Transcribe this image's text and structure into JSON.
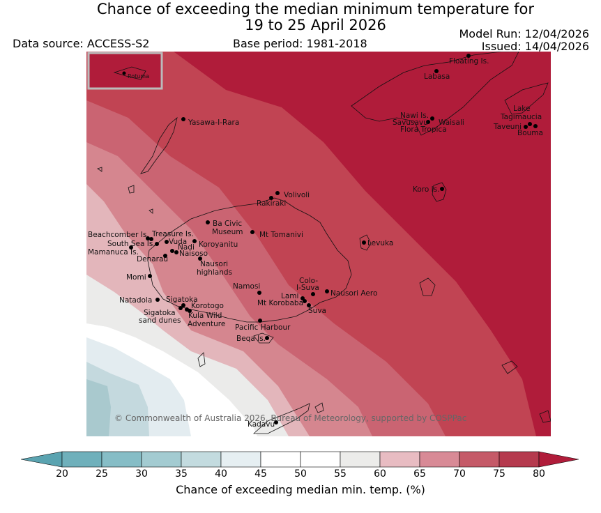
{
  "title": "Chance of exceeding the median minimum temperature for",
  "title_line2": "19 to 25 April 2026",
  "data_source": "Data source: ACCESS-S2",
  "base_period": "Base period: 1981-2018",
  "model_run": "Model Run: 12/04/2026",
  "issued": "Issued: 14/04/2026",
  "inset_label": "Rotuma",
  "copyright": "© Commonwealth of Australia 2026, Bureau of Meteorology, supported by COSPPac",
  "colorbar": {
    "label": "Chance of exceeding median min. temp. (%)",
    "ticks": [
      "20",
      "25",
      "30",
      "35",
      "40",
      "45",
      "50",
      "55",
      "60",
      "65",
      "70",
      "75",
      "80"
    ],
    "colors": [
      "#5aa3b0",
      "#6fb0bb",
      "#86bdc6",
      "#a3cbd1",
      "#c3dbdf",
      "#e6eff2",
      "#ffffff",
      "#ffffff",
      "#ececea",
      "#e8bcc2",
      "#d88a96",
      "#c55a68",
      "#b53a4e"
    ],
    "under_color": "#5aa3b0",
    "over_color": "#b01c3a"
  },
  "places": [
    {
      "name": "Floating Is.",
      "label": "Floating Is."
    },
    {
      "name": "Labasa",
      "label": "Labasa"
    },
    {
      "name": "Nawi Is.",
      "label": "Nawi Is."
    },
    {
      "name": "Savusavu",
      "label": "Savusavu"
    },
    {
      "name": "Waisali",
      "label": "Waisali"
    },
    {
      "name": "Flora Tropica",
      "label": "Flora Tropica"
    },
    {
      "name": "Lake Tagimaucia",
      "label": "Lake"
    },
    {
      "name": "Lake Tagimaucia 2",
      "label": "Tagimaucia"
    },
    {
      "name": "Taveuni",
      "label": "Taveuni"
    },
    {
      "name": "Bouma",
      "label": "Bouma"
    },
    {
      "name": "Yasawa-I-Rara",
      "label": "Yasawa-I-Rara"
    },
    {
      "name": "Koro Is.",
      "label": "Koro Is."
    },
    {
      "name": "Volivoli",
      "label": "Volivoli"
    },
    {
      "name": "Rakiraki",
      "label": "Rakiraki"
    },
    {
      "name": "Ba Civic Museum",
      "label": "Ba Civic"
    },
    {
      "name": "Ba Civic Museum 2",
      "label": "Museum"
    },
    {
      "name": "Mt Tomanivi",
      "label": "Mt Tomanivi"
    },
    {
      "name": "Beachcomber Is.",
      "label": "Beachcomber Is."
    },
    {
      "name": "Treasure Is.",
      "label": "Treasure Is."
    },
    {
      "name": "South Sea Is.",
      "label": "South Sea Is."
    },
    {
      "name": "Vuda",
      "label": "Vuda"
    },
    {
      "name": "Koroyanitu",
      "label": "Koroyanitu"
    },
    {
      "name": "Nadi",
      "label": "Nadi"
    },
    {
      "name": "Mamanuca Is.",
      "label": "Mamanuca Is."
    },
    {
      "name": "Naisoso",
      "label": "Naisoso"
    },
    {
      "name": "Denarau",
      "label": "Denarau"
    },
    {
      "name": "Nausori highlands",
      "label": "Nausori"
    },
    {
      "name": "Nausori highlands 2",
      "label": "highlands"
    },
    {
      "name": "Levuka",
      "label": "Levuka"
    },
    {
      "name": "Momi",
      "label": "Momi"
    },
    {
      "name": "Namosi",
      "label": "Namosi"
    },
    {
      "name": "Colo-I-Suva",
      "label": "Colo-"
    },
    {
      "name": "Colo-I-Suva 2",
      "label": "I-Suva"
    },
    {
      "name": "Nausori Aero",
      "label": "Nausori Aero"
    },
    {
      "name": "Natadola",
      "label": "Natadola"
    },
    {
      "name": "Sigatoka",
      "label": "Sigatoka"
    },
    {
      "name": "Lami",
      "label": "Lami"
    },
    {
      "name": "Mt Korobaba",
      "label": "Mt Korobaba"
    },
    {
      "name": "Korotogo",
      "label": "Korotogo"
    },
    {
      "name": "Suva",
      "label": "Suva"
    },
    {
      "name": "Sigatoka sand dunes",
      "label": "Sigatoka"
    },
    {
      "name": "Sigatoka sand dunes 2",
      "label": "sand dunes"
    },
    {
      "name": "Kula Wild Adventure",
      "label": "Kula Wild"
    },
    {
      "name": "Kula Wild Adventure 2",
      "label": "Adventure"
    },
    {
      "name": "Pacific Harbour",
      "label": "Pacific Harbour"
    },
    {
      "name": "Beqa Is.",
      "label": "Beqa Is."
    },
    {
      "name": "Kadavu",
      "label": "Kadavu"
    }
  ]
}
